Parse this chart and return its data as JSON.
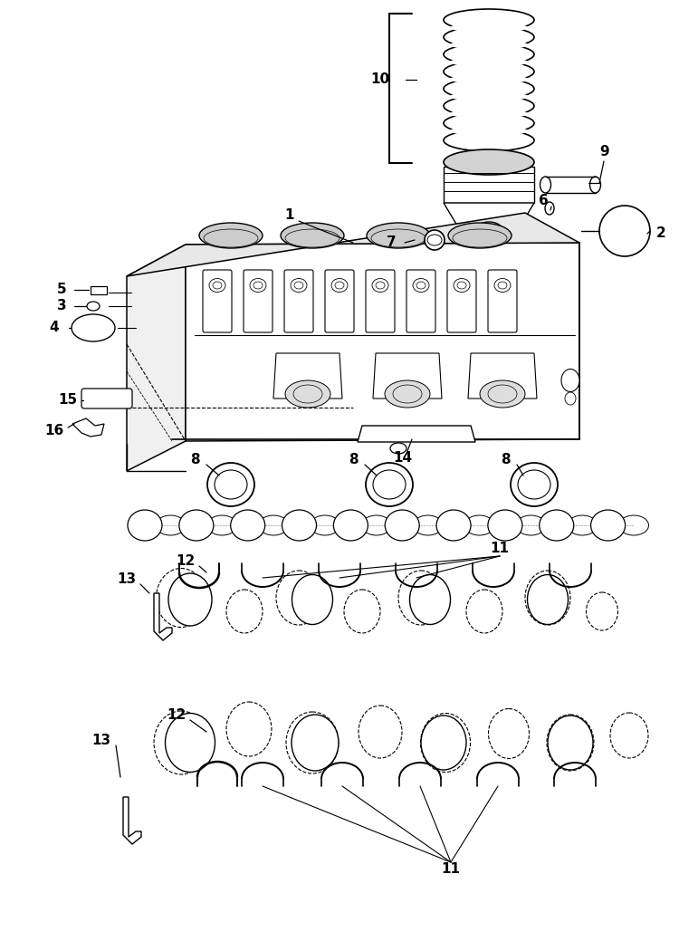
{
  "bg_color": "#ffffff",
  "fig_width": 7.5,
  "fig_height": 10.5,
  "dpi": 100,
  "lw_main": 1.1,
  "lw_thin": 0.7,
  "lw_thick": 1.5
}
